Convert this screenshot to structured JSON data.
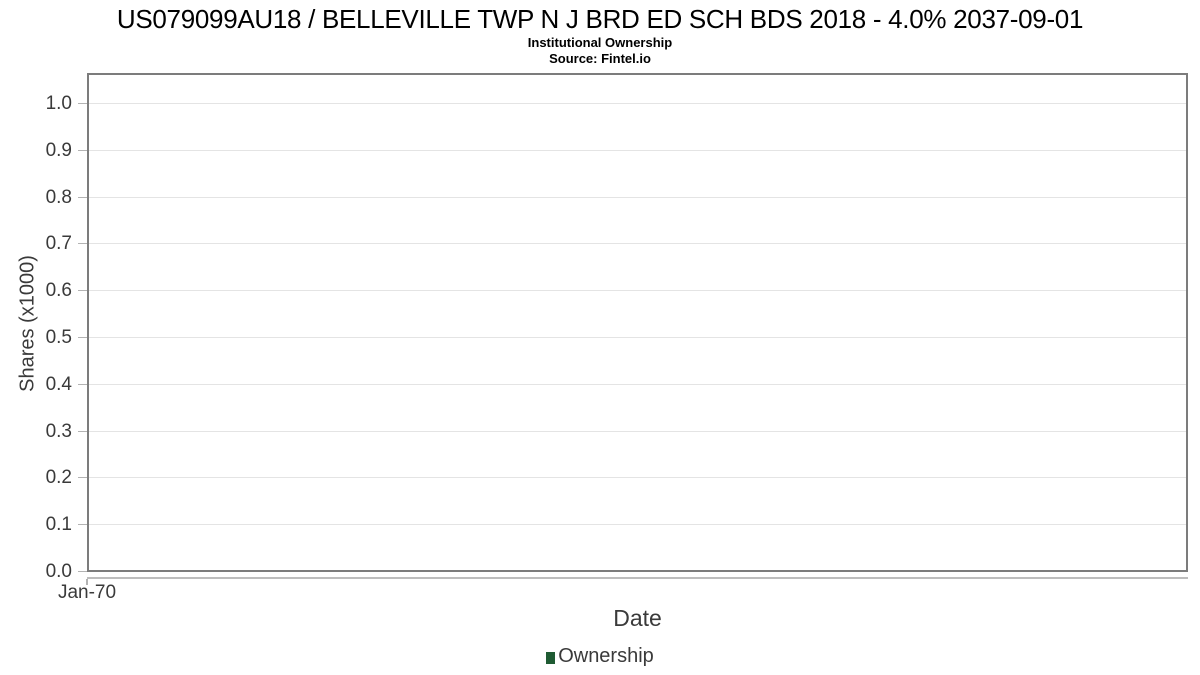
{
  "chart_data": {
    "type": "line",
    "title": "US079099AU18 / BELLEVILLE TWP N J BRD ED SCH BDS 2018 - 4.0% 2037-09-01",
    "subtitle": "Institutional Ownership",
    "source": "Source: Fintel.io",
    "xlabel": "Date",
    "ylabel": "Shares (x1000)",
    "ylim": [
      0.0,
      1.0
    ],
    "ytick_values": [
      0.0,
      0.1,
      0.2,
      0.3,
      0.4,
      0.5,
      0.6,
      0.7,
      0.8,
      0.9,
      1.0
    ],
    "ytick_labels": [
      "0.0",
      "0.1",
      "0.2",
      "0.3",
      "0.4",
      "0.5",
      "0.6",
      "0.7",
      "0.8",
      "0.9",
      "1.0"
    ],
    "xtick_labels": [
      "Jan-70"
    ],
    "grid": "horizontal",
    "legend_position": "bottom-center",
    "series": [
      {
        "name": "Ownership",
        "color": "#1f5b33",
        "x": [],
        "values": []
      }
    ]
  },
  "colors": {
    "grid": "#e4e4e4",
    "plot_border": "#7c7c7c",
    "tick": "#b3b3b3",
    "axis_text": "#3a3a3a",
    "legend_marker": "#1f5b33"
  }
}
